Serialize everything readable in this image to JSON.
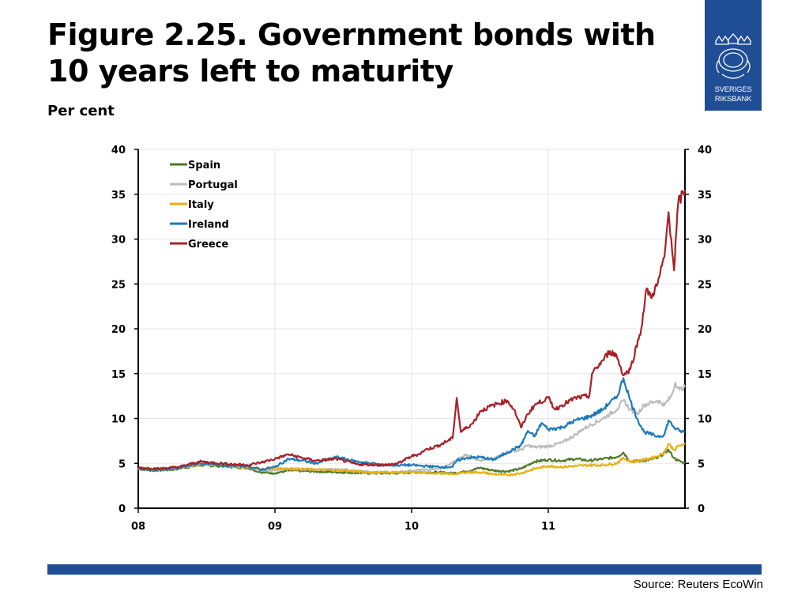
{
  "header": {
    "title": "Figure 2.25. Government bonds with 10 years left to maturity",
    "subtitle": "Per cent"
  },
  "logo": {
    "line1": "SVERIGES",
    "line2": "RIKSBANK",
    "color": "#1f4e96"
  },
  "footer": {
    "source": "Source: Reuters EcoWin"
  },
  "chart_data": {
    "type": "line",
    "title": "Figure 2.25. Government bonds with 10 years left to maturity",
    "ylabel": "Per cent",
    "xlim": [
      2008.0,
      2012.0
    ],
    "ylim": [
      0,
      40
    ],
    "y_ticks": [
      0,
      5,
      10,
      15,
      20,
      25,
      30,
      35,
      40
    ],
    "x_tick_labels": [
      {
        "x": 2008.0,
        "label": "08"
      },
      {
        "x": 2009.0,
        "label": "09"
      },
      {
        "x": 2010.0,
        "label": "10"
      },
      {
        "x": 2011.0,
        "label": "11"
      }
    ],
    "grid": true,
    "right_axis_mirror": true,
    "legend_position": "top-left",
    "series": [
      {
        "name": "Spain",
        "color": "#4e7a27",
        "points": [
          [
            2008.0,
            4.4
          ],
          [
            2008.1,
            4.2
          ],
          [
            2008.25,
            4.3
          ],
          [
            2008.45,
            4.8
          ],
          [
            2008.6,
            4.7
          ],
          [
            2008.8,
            4.5
          ],
          [
            2008.9,
            4.0
          ],
          [
            2009.0,
            3.9
          ],
          [
            2009.1,
            4.2
          ],
          [
            2009.3,
            4.1
          ],
          [
            2009.5,
            4.0
          ],
          [
            2009.7,
            3.9
          ],
          [
            2009.9,
            3.9
          ],
          [
            2010.0,
            4.0
          ],
          [
            2010.2,
            4.0
          ],
          [
            2010.3,
            3.9
          ],
          [
            2010.4,
            4.1
          ],
          [
            2010.5,
            4.5
          ],
          [
            2010.6,
            4.2
          ],
          [
            2010.7,
            4.1
          ],
          [
            2010.8,
            4.4
          ],
          [
            2010.9,
            5.2
          ],
          [
            2011.0,
            5.4
          ],
          [
            2011.1,
            5.3
          ],
          [
            2011.2,
            5.5
          ],
          [
            2011.3,
            5.3
          ],
          [
            2011.4,
            5.5
          ],
          [
            2011.5,
            5.7
          ],
          [
            2011.55,
            6.2
          ],
          [
            2011.6,
            5.2
          ],
          [
            2011.7,
            5.3
          ],
          [
            2011.8,
            5.6
          ],
          [
            2011.88,
            6.5
          ],
          [
            2011.92,
            5.6
          ],
          [
            2011.95,
            5.3
          ],
          [
            2012.0,
            5.0
          ]
        ]
      },
      {
        "name": "Portugal",
        "color": "#bdbdbd",
        "points": [
          [
            2008.0,
            4.4
          ],
          [
            2008.15,
            4.3
          ],
          [
            2008.3,
            4.5
          ],
          [
            2008.45,
            4.9
          ],
          [
            2008.6,
            4.8
          ],
          [
            2008.8,
            4.6
          ],
          [
            2008.9,
            4.2
          ],
          [
            2009.0,
            4.2
          ],
          [
            2009.1,
            4.4
          ],
          [
            2009.3,
            4.3
          ],
          [
            2009.5,
            4.3
          ],
          [
            2009.7,
            4.0
          ],
          [
            2009.9,
            4.0
          ],
          [
            2010.0,
            4.2
          ],
          [
            2010.15,
            4.3
          ],
          [
            2010.25,
            4.6
          ],
          [
            2010.33,
            5.4
          ],
          [
            2010.4,
            6.0
          ],
          [
            2010.5,
            5.3
          ],
          [
            2010.6,
            5.5
          ],
          [
            2010.7,
            6.3
          ],
          [
            2010.8,
            6.5
          ],
          [
            2010.85,
            7.0
          ],
          [
            2010.9,
            6.8
          ],
          [
            2011.0,
            6.9
          ],
          [
            2011.1,
            7.3
          ],
          [
            2011.2,
            8.2
          ],
          [
            2011.25,
            8.8
          ],
          [
            2011.3,
            9.2
          ],
          [
            2011.4,
            10.0
          ],
          [
            2011.5,
            11.0
          ],
          [
            2011.55,
            12.0
          ],
          [
            2011.6,
            11.0
          ],
          [
            2011.65,
            10.5
          ],
          [
            2011.7,
            11.5
          ],
          [
            2011.8,
            12.0
          ],
          [
            2011.85,
            11.5
          ],
          [
            2011.9,
            12.5
          ],
          [
            2011.93,
            14.0
          ],
          [
            2011.96,
            13.2
          ],
          [
            2012.0,
            13.5
          ]
        ]
      },
      {
        "name": "Italy",
        "color": "#e8b012",
        "points": [
          [
            2008.0,
            4.5
          ],
          [
            2008.15,
            4.4
          ],
          [
            2008.3,
            4.5
          ],
          [
            2008.45,
            4.9
          ],
          [
            2008.6,
            4.8
          ],
          [
            2008.8,
            4.6
          ],
          [
            2008.9,
            4.3
          ],
          [
            2009.0,
            4.5
          ],
          [
            2009.1,
            4.4
          ],
          [
            2009.3,
            4.3
          ],
          [
            2009.5,
            4.2
          ],
          [
            2009.7,
            4.0
          ],
          [
            2009.9,
            4.0
          ],
          [
            2010.0,
            4.0
          ],
          [
            2010.2,
            3.9
          ],
          [
            2010.3,
            3.8
          ],
          [
            2010.4,
            4.0
          ],
          [
            2010.5,
            4.0
          ],
          [
            2010.6,
            3.8
          ],
          [
            2010.7,
            3.7
          ],
          [
            2010.8,
            3.9
          ],
          [
            2010.9,
            4.4
          ],
          [
            2011.0,
            4.7
          ],
          [
            2011.1,
            4.6
          ],
          [
            2011.2,
            4.7
          ],
          [
            2011.3,
            4.8
          ],
          [
            2011.4,
            4.8
          ],
          [
            2011.5,
            5.0
          ],
          [
            2011.55,
            5.6
          ],
          [
            2011.6,
            5.2
          ],
          [
            2011.7,
            5.4
          ],
          [
            2011.8,
            5.8
          ],
          [
            2011.85,
            6.2
          ],
          [
            2011.88,
            7.2
          ],
          [
            2011.92,
            6.5
          ],
          [
            2011.96,
            7.0
          ],
          [
            2012.0,
            7.1
          ]
        ]
      },
      {
        "name": "Ireland",
        "color": "#1d7ab8",
        "points": [
          [
            2008.0,
            4.4
          ],
          [
            2008.15,
            4.3
          ],
          [
            2008.3,
            4.5
          ],
          [
            2008.45,
            5.0
          ],
          [
            2008.6,
            4.8
          ],
          [
            2008.8,
            4.7
          ],
          [
            2008.9,
            4.3
          ],
          [
            2009.0,
            4.6
          ],
          [
            2009.1,
            5.5
          ],
          [
            2009.2,
            5.3
          ],
          [
            2009.3,
            5.0
          ],
          [
            2009.45,
            5.7
          ],
          [
            2009.6,
            5.2
          ],
          [
            2009.8,
            4.8
          ],
          [
            2009.9,
            4.8
          ],
          [
            2010.0,
            4.8
          ],
          [
            2010.2,
            4.6
          ],
          [
            2010.3,
            4.6
          ],
          [
            2010.33,
            5.3
          ],
          [
            2010.4,
            5.6
          ],
          [
            2010.5,
            5.7
          ],
          [
            2010.6,
            5.4
          ],
          [
            2010.7,
            6.2
          ],
          [
            2010.8,
            7.0
          ],
          [
            2010.85,
            8.6
          ],
          [
            2010.9,
            8.0
          ],
          [
            2010.95,
            9.5
          ],
          [
            2011.0,
            8.8
          ],
          [
            2011.1,
            9.0
          ],
          [
            2011.2,
            9.8
          ],
          [
            2011.3,
            10.2
          ],
          [
            2011.4,
            11.0
          ],
          [
            2011.45,
            11.8
          ],
          [
            2011.5,
            12.3
          ],
          [
            2011.55,
            14.5
          ],
          [
            2011.6,
            12.0
          ],
          [
            2011.65,
            10.0
          ],
          [
            2011.7,
            8.5
          ],
          [
            2011.8,
            8.0
          ],
          [
            2011.85,
            8.2
          ],
          [
            2011.88,
            9.8
          ],
          [
            2011.92,
            9.0
          ],
          [
            2011.96,
            8.6
          ],
          [
            2012.0,
            8.5
          ]
        ]
      },
      {
        "name": "Greece",
        "color": "#a82128",
        "points": [
          [
            2008.0,
            4.5
          ],
          [
            2008.15,
            4.4
          ],
          [
            2008.3,
            4.6
          ],
          [
            2008.45,
            5.2
          ],
          [
            2008.6,
            5.0
          ],
          [
            2008.8,
            4.8
          ],
          [
            2008.9,
            5.1
          ],
          [
            2009.0,
            5.5
          ],
          [
            2009.1,
            6.0
          ],
          [
            2009.2,
            5.6
          ],
          [
            2009.3,
            5.3
          ],
          [
            2009.45,
            5.5
          ],
          [
            2009.6,
            4.9
          ],
          [
            2009.8,
            4.8
          ],
          [
            2009.9,
            5.0
          ],
          [
            2010.0,
            5.8
          ],
          [
            2010.05,
            6.0
          ],
          [
            2010.1,
            6.5
          ],
          [
            2010.2,
            7.0
          ],
          [
            2010.3,
            7.8
          ],
          [
            2010.33,
            12.3
          ],
          [
            2010.36,
            8.5
          ],
          [
            2010.45,
            9.5
          ],
          [
            2010.5,
            10.8
          ],
          [
            2010.6,
            11.5
          ],
          [
            2010.7,
            12.0
          ],
          [
            2010.75,
            11.0
          ],
          [
            2010.8,
            9.0
          ],
          [
            2010.85,
            10.5
          ],
          [
            2010.9,
            11.5
          ],
          [
            2011.0,
            12.3
          ],
          [
            2011.05,
            11.0
          ],
          [
            2011.1,
            11.5
          ],
          [
            2011.2,
            12.3
          ],
          [
            2011.3,
            12.5
          ],
          [
            2011.32,
            15.0
          ],
          [
            2011.4,
            16.5
          ],
          [
            2011.45,
            17.5
          ],
          [
            2011.5,
            17.0
          ],
          [
            2011.55,
            14.8
          ],
          [
            2011.6,
            15.5
          ],
          [
            2011.68,
            20.0
          ],
          [
            2011.72,
            24.5
          ],
          [
            2011.75,
            23.5
          ],
          [
            2011.8,
            25.0
          ],
          [
            2011.85,
            28.0
          ],
          [
            2011.88,
            33.0
          ],
          [
            2011.9,
            30.0
          ],
          [
            2011.92,
            26.5
          ],
          [
            2011.95,
            34.0
          ],
          [
            2012.0,
            35.5
          ]
        ]
      }
    ]
  }
}
